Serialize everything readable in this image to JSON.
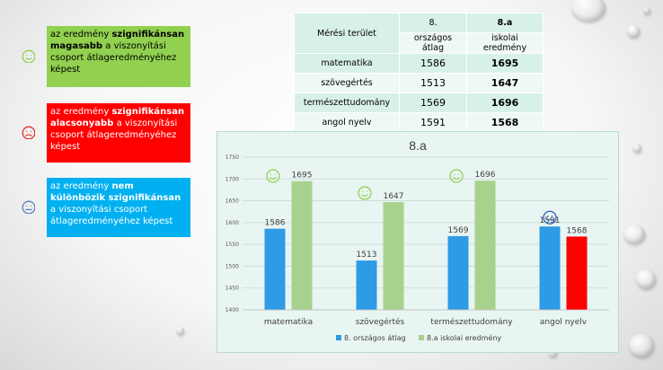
{
  "legend": [
    {
      "parts": [
        {
          "t": "az eredmény ",
          "b": false
        },
        {
          "t": "szignifikánsan magasabb",
          "b": true
        },
        {
          "t": " a viszonyítási csoport átlageredményéhez képest",
          "b": false
        }
      ],
      "bg": "#92d050",
      "face": "smile",
      "face_color": "#92d050"
    },
    {
      "parts": [
        {
          "t": "az eredmény ",
          "b": false
        },
        {
          "t": "szignifikánsan alacsonyabb",
          "b": true
        },
        {
          "t": " a viszonyítási csoport átlageredményéhez képest",
          "b": false
        }
      ],
      "bg": "#ff0000",
      "face": "sad",
      "face_color": "#e0302a",
      "text_color": "#ffffff"
    },
    {
      "parts": [
        {
          "t": "az eredmény ",
          "b": false
        },
        {
          "t": "nem különbözik szignifikánsan",
          "b": true
        },
        {
          "t": " a viszonyítási csoport átlageredményéhez képest",
          "b": false
        }
      ],
      "bg": "#00b0f0",
      "face": "neutral",
      "face_color": "#5b7fc0",
      "text_color": "#ffffff"
    }
  ],
  "table": {
    "head_area": "Mérési terület",
    "head_c1_top": "8.",
    "head_c1_sub": "országos átlag",
    "head_c2_top": "8.a",
    "head_c2_sub": "iskolai eredmény",
    "rows": [
      {
        "area": "matematika",
        "c1": "1586",
        "c2": "1695"
      },
      {
        "area": "szövegértés",
        "c1": "1513",
        "c2": "1647"
      },
      {
        "area": "természettudomány",
        "c1": "1569",
        "c2": "1696"
      },
      {
        "area": "angol nyelv",
        "c1": "1591",
        "c2": "1568"
      }
    ]
  },
  "chart_data": {
    "type": "bar",
    "title": "8.a",
    "categories": [
      "matematika",
      "szövegértés",
      "természettudomány",
      "angol nyelv"
    ],
    "series": [
      {
        "name": "8. országos átlag",
        "values": [
          1586,
          1513,
          1569,
          1591
        ],
        "color": "#2e9be6"
      },
      {
        "name": "8.a iskolai eredmény",
        "values": [
          1695,
          1647,
          1696,
          1568
        ],
        "color": "#a9d18e"
      }
    ],
    "highlight": {
      "category_index": 3,
      "series_index": 1,
      "color": "#ff0000"
    },
    "ylim": [
      1400,
      1750
    ],
    "yticks": [
      1400,
      1450,
      1500,
      1550,
      1600,
      1650,
      1700,
      1750
    ],
    "xlabel": "",
    "ylabel": "",
    "grid": true,
    "legend_position": "bottom",
    "faces": [
      "smile",
      "smile",
      "smile",
      "neutral"
    ]
  },
  "colors": {
    "smile": "#92d050",
    "neutral": "#2f5fc0",
    "sad": "#e0302a"
  }
}
